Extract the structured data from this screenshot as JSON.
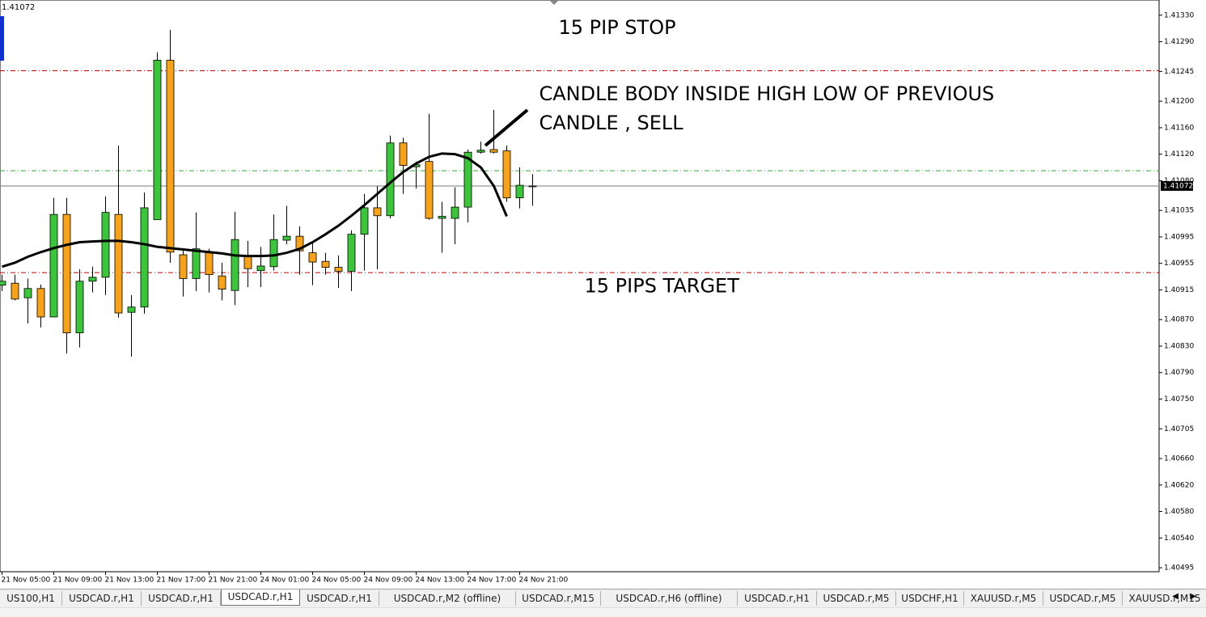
{
  "chart_data": {
    "type": "candlestick",
    "current_price": 1.41072,
    "categories": [
      "21 Nov 05:00",
      null,
      null,
      null,
      "21 Nov 09:00",
      null,
      null,
      null,
      "21 Nov 13:00",
      null,
      null,
      null,
      "21 Nov 17:00",
      null,
      null,
      null,
      "21 Nov 21:00",
      null,
      null,
      null,
      "24 Nov 01:00",
      null,
      null,
      null,
      "24 Nov 05:00",
      null,
      null,
      null,
      "24 Nov 09:00",
      null,
      null,
      null,
      "24 Nov 13:00",
      null,
      null,
      null,
      "24 Nov 17:00",
      null,
      null,
      null,
      "24 Nov 21:00",
      null
    ],
    "open": [
      1.40922,
      1.40925,
      1.40903,
      1.40917,
      1.40874,
      1.41029,
      1.4085,
      1.40928,
      1.40934,
      1.41029,
      1.40881,
      1.40889,
      1.41021,
      1.41262,
      1.40968,
      1.40932,
      1.40972,
      1.40936,
      1.40914,
      1.40965,
      1.40944,
      1.4095,
      1.4099,
      1.40996,
      1.40971,
      1.40958,
      1.40949,
      1.40943,
      1.40999,
      1.41039,
      1.41027,
      1.41137,
      1.41101,
      1.41109,
      1.41023,
      1.41023,
      1.4104,
      1.41123,
      1.41127,
      1.41125,
      1.41054,
      1.41071
    ],
    "high": [
      1.40938,
      1.40938,
      1.40932,
      1.40923,
      1.41054,
      1.41054,
      1.40946,
      1.4095,
      1.41056,
      1.41133,
      1.40907,
      1.41062,
      1.41274,
      1.41308,
      1.40974,
      1.41032,
      1.40977,
      1.40956,
      1.41033,
      1.40989,
      1.4098,
      1.41029,
      1.41042,
      1.41011,
      1.40987,
      1.40971,
      1.40967,
      1.41005,
      1.4106,
      1.41072,
      1.41148,
      1.41145,
      1.41109,
      1.41181,
      1.41048,
      1.4107,
      1.41127,
      1.41139,
      1.41187,
      1.41133,
      1.411,
      1.4109
    ],
    "low": [
      1.40913,
      1.40899,
      1.40864,
      1.40858,
      1.40874,
      1.40819,
      1.40828,
      1.40911,
      1.40907,
      1.40873,
      1.40814,
      1.40879,
      1.41021,
      1.40956,
      1.40905,
      1.40913,
      1.40911,
      1.40899,
      1.40892,
      1.40919,
      1.40919,
      1.40944,
      1.40984,
      1.40938,
      1.40922,
      1.40938,
      1.40918,
      1.40913,
      1.40944,
      1.40946,
      1.41023,
      1.4106,
      1.41068,
      1.41021,
      1.40971,
      1.40984,
      1.41017,
      1.41121,
      1.41121,
      1.41048,
      1.41038,
      1.41042
    ],
    "close": [
      1.40928,
      1.40901,
      1.40917,
      1.40874,
      1.41029,
      1.4085,
      1.40928,
      1.40934,
      1.41032,
      1.4088,
      1.40889,
      1.41039,
      1.41262,
      1.40972,
      1.40932,
      1.40977,
      1.40938,
      1.40916,
      1.40991,
      1.40947,
      1.40951,
      1.40991,
      1.40996,
      1.40974,
      1.40957,
      1.40949,
      1.40943,
      1.40999,
      1.41039,
      1.41027,
      1.41137,
      1.41103,
      1.41104,
      1.41023,
      1.41026,
      1.4104,
      1.41123,
      1.41126,
      1.41123,
      1.41054,
      1.41073,
      1.41072
    ],
    "up_color": "#3cc43c",
    "down_color": "#f7a21b",
    "moving_average": {
      "color": "#000000",
      "values": [
        1.4095,
        1.40956,
        1.40965,
        1.40972,
        1.40978,
        1.40983,
        1.40987,
        1.40988,
        1.40989,
        1.40989,
        1.40987,
        1.40984,
        1.4098,
        1.40978,
        1.40976,
        1.40974,
        1.40972,
        1.4097,
        1.40967,
        1.40966,
        1.40966,
        1.40967,
        1.40971,
        1.40977,
        1.40987,
        1.40999,
        1.41012,
        1.41027,
        1.41043,
        1.4106,
        1.41077,
        1.41093,
        1.41106,
        1.41116,
        1.41121,
        1.4112,
        1.41114,
        1.411,
        1.41072,
        1.41026,
        null,
        null
      ]
    },
    "levels": [
      {
        "value": 1.41246,
        "color": "#c00000",
        "style": "dashdot"
      },
      {
        "value": 1.41095,
        "color": "#33aa33",
        "style": "dashdot"
      },
      {
        "value": 1.41072,
        "color": "#708070",
        "style": "solid"
      },
      {
        "value": 1.40941,
        "color": "#c00000",
        "style": "dashdot"
      }
    ],
    "annotations": [
      {
        "lines": [
          "15 PIP STOP"
        ],
        "price": 1.4131,
        "x_index": 43
      },
      {
        "lines": [
          "CANDLE BODY INSIDE HIGH LOW OF PREVIOUS",
          "CANDLE , SELL"
        ],
        "price": 1.4121,
        "x_index": 41.5
      },
      {
        "lines": [
          "15 PIPS TARGET"
        ],
        "price": 1.4092,
        "x_index": 45
      }
    ],
    "ylim": [
      1.40489,
      1.41353
    ],
    "yticks": [
      {
        "value": 1.4133,
        "label": "1.41330"
      },
      {
        "value": 1.4129,
        "label": "1.41290"
      },
      1.41245,
      {
        "value": 1.412,
        "label": "1.41200"
      },
      {
        "value": 1.4116,
        "label": "1.41160"
      },
      {
        "value": 1.4112,
        "label": "1.41120"
      },
      {
        "value": 1.4108,
        "label": "1.41080"
      },
      1.41035,
      1.40995,
      1.40955,
      1.40915,
      {
        "value": 1.4087,
        "label": "1.40870"
      },
      {
        "value": 1.4083,
        "label": "1.40830"
      },
      {
        "value": 1.4079,
        "label": "1.40790"
      },
      {
        "value": 1.4075,
        "label": "1.40750"
      },
      1.40705,
      {
        "value": 1.4066,
        "label": "1.40660"
      },
      {
        "value": 1.4062,
        "label": "1.40620"
      },
      {
        "value": 1.4058,
        "label": "1.40580"
      },
      {
        "value": 1.4054,
        "label": "1.40540"
      },
      1.40495
    ]
  },
  "tabs": [
    "US100,H1",
    "USDCAD.r,H1",
    "USDCAD.r,H1",
    "USDCAD.r,H1",
    "USDCAD.r,H1",
    "USDCAD.r,M2 (offline)",
    "USDCAD.r,M15",
    "USDCAD.r,H6 (offline)",
    "USDCAD.r,H1",
    "USDCAD.r,M5",
    "USDCHF,H1",
    "XAUUSD.r,M5",
    "USDCAD.r,M5",
    "XAUUSD.r,M15"
  ],
  "active_tab": 3
}
